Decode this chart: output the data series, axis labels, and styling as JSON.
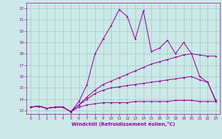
{
  "xlabel": "Windchill (Refroidissement éolien,°C)",
  "bg_color": "#cce8e8",
  "line_color": "#990099",
  "grid_color": "#99ccbb",
  "xlim": [
    -0.5,
    23.5
  ],
  "ylim": [
    12.7,
    22.5
  ],
  "xticks": [
    0,
    1,
    2,
    3,
    4,
    5,
    6,
    7,
    8,
    9,
    10,
    11,
    12,
    13,
    14,
    15,
    16,
    17,
    18,
    19,
    20,
    21,
    22,
    23
  ],
  "yticks": [
    13,
    14,
    15,
    16,
    17,
    18,
    19,
    20,
    21,
    22
  ],
  "line_main_x": [
    0,
    1,
    2,
    3,
    4,
    5,
    6,
    7,
    8,
    9,
    10,
    11,
    12,
    13,
    14,
    15,
    16,
    17,
    18,
    19,
    20,
    21,
    22,
    23
  ],
  "line_main_y": [
    13.3,
    13.4,
    13.2,
    13.3,
    13.3,
    12.9,
    13.8,
    15.3,
    18.0,
    19.3,
    20.5,
    21.9,
    21.3,
    19.3,
    21.8,
    18.2,
    18.5,
    19.2,
    18.0,
    19.0,
    18.0,
    16.0,
    15.5,
    13.8
  ],
  "line_diag_x": [
    0,
    1,
    2,
    3,
    4,
    5,
    6,
    7,
    8,
    9,
    10,
    11,
    12,
    13,
    14,
    15,
    16,
    17,
    18,
    19,
    20,
    21,
    22,
    23
  ],
  "line_diag_y": [
    13.3,
    13.4,
    13.2,
    13.3,
    13.3,
    12.9,
    13.5,
    14.2,
    14.8,
    15.3,
    15.6,
    15.9,
    16.2,
    16.5,
    16.8,
    17.1,
    17.3,
    17.5,
    17.7,
    17.9,
    18.0,
    17.9,
    17.8,
    17.8
  ],
  "line_mid_x": [
    0,
    1,
    2,
    3,
    4,
    5,
    6,
    7,
    8,
    9,
    10,
    11,
    12,
    13,
    14,
    15,
    16,
    17,
    18,
    19,
    20,
    21,
    22,
    23
  ],
  "line_mid_y": [
    13.3,
    13.4,
    13.2,
    13.3,
    13.3,
    12.9,
    13.5,
    14.0,
    14.5,
    14.8,
    15.0,
    15.1,
    15.2,
    15.3,
    15.4,
    15.5,
    15.6,
    15.7,
    15.8,
    15.9,
    16.0,
    15.7,
    15.5,
    13.9
  ],
  "line_flat_x": [
    0,
    1,
    2,
    3,
    4,
    5,
    6,
    7,
    8,
    9,
    10,
    11,
    12,
    13,
    14,
    15,
    16,
    17,
    18,
    19,
    20,
    21,
    22,
    23
  ],
  "line_flat_y": [
    13.3,
    13.4,
    13.2,
    13.3,
    13.3,
    12.9,
    13.3,
    13.5,
    13.6,
    13.7,
    13.7,
    13.7,
    13.7,
    13.8,
    13.8,
    13.8,
    13.8,
    13.8,
    13.9,
    13.9,
    13.9,
    13.8,
    13.8,
    13.8
  ]
}
